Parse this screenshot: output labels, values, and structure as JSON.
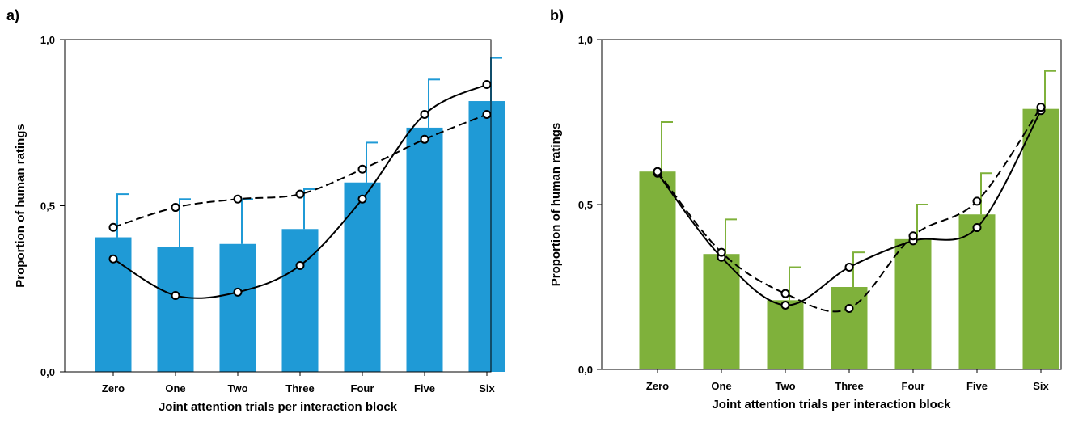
{
  "chart_data": [
    {
      "panel_label": "a)",
      "type": "bar",
      "xlabel": "Joint attention trials per interaction block",
      "ylabel": "Proportion of human ratings",
      "ylim": [
        0,
        1
      ],
      "yticks": [
        0,
        0.5,
        1
      ],
      "yticklabels": [
        "0,0",
        "0,5",
        "1,0"
      ],
      "categories": [
        "Zero",
        "One",
        "Two",
        "Three",
        "Four",
        "Five",
        "Six"
      ],
      "bar_color": "#1f9ad6",
      "values": [
        0.405,
        0.375,
        0.385,
        0.43,
        0.57,
        0.735,
        0.815
      ],
      "error_upper": [
        0.535,
        0.52,
        0.52,
        0.55,
        0.69,
        0.88,
        0.945
      ],
      "lines": [
        {
          "style": "solid",
          "values": [
            0.34,
            0.23,
            0.24,
            0.32,
            0.52,
            0.775,
            0.865
          ]
        },
        {
          "style": "dashed",
          "values": [
            0.435,
            0.495,
            0.52,
            0.535,
            0.61,
            0.7,
            0.775
          ]
        }
      ],
      "grid": false
    },
    {
      "panel_label": "b)",
      "type": "bar",
      "xlabel": "Joint attention trials per interaction block",
      "ylabel": "Proportion of human ratings",
      "ylim": [
        0,
        1
      ],
      "yticks": [
        0,
        0.5,
        1
      ],
      "yticklabels": [
        "0,0",
        "0,5",
        "1,0"
      ],
      "categories": [
        "Zero",
        "One",
        "Two",
        "Three",
        "Four",
        "Five",
        "Six"
      ],
      "bar_color": "#7fb13b",
      "values": [
        0.6,
        0.35,
        0.21,
        0.25,
        0.395,
        0.47,
        0.79
      ],
      "error_upper": [
        0.75,
        0.455,
        0.31,
        0.355,
        0.5,
        0.595,
        0.905
      ],
      "lines": [
        {
          "style": "solid",
          "values": [
            0.595,
            0.34,
            0.195,
            0.31,
            0.39,
            0.43,
            0.785
          ]
        },
        {
          "style": "dashed",
          "values": [
            0.6,
            0.355,
            0.23,
            0.185,
            0.405,
            0.51,
            0.795
          ]
        }
      ],
      "grid": false
    }
  ]
}
